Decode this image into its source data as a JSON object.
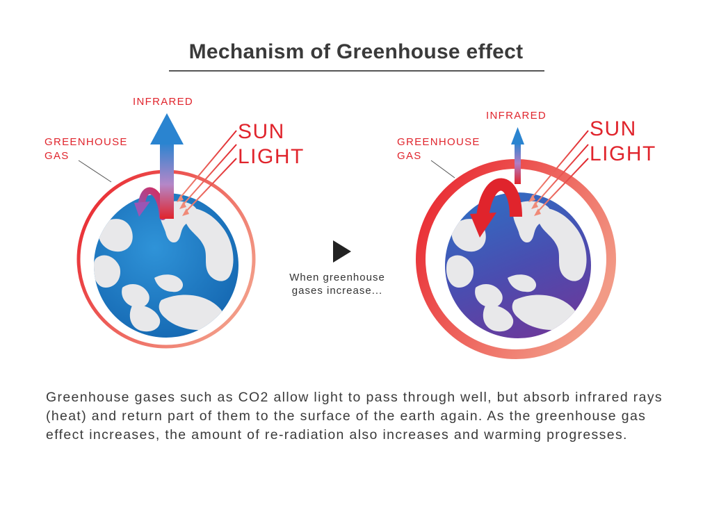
{
  "title": "Mechanism of Greenhouse effect",
  "left_panel": {
    "infrared_label": "INFRARED",
    "gas_label": [
      "GREENHOUSE",
      "GAS"
    ],
    "sun_label": [
      "SUN",
      "LIGHT"
    ]
  },
  "right_panel": {
    "infrared_label": "INFRARED",
    "gas_label": [
      "GREENHOUSE",
      "GAS"
    ],
    "sun_label": [
      "SUN",
      "LIGHT"
    ]
  },
  "transition_caption": [
    "When greenhouse",
    "gases increase..."
  ],
  "description": "Greenhouse gases such as CO2 allow light to pass through well, but absorb infrared rays (heat) and return part of them to the surface of the earth again. As the greenhouse gas effect increases, the amount of re-radiation also increases and warming progresses.",
  "colors": {
    "accent_red": "#e0242c",
    "earth_blue": "#1a78c2",
    "earth_purple": "#5a3ea0",
    "land": "#e8e8ea"
  }
}
